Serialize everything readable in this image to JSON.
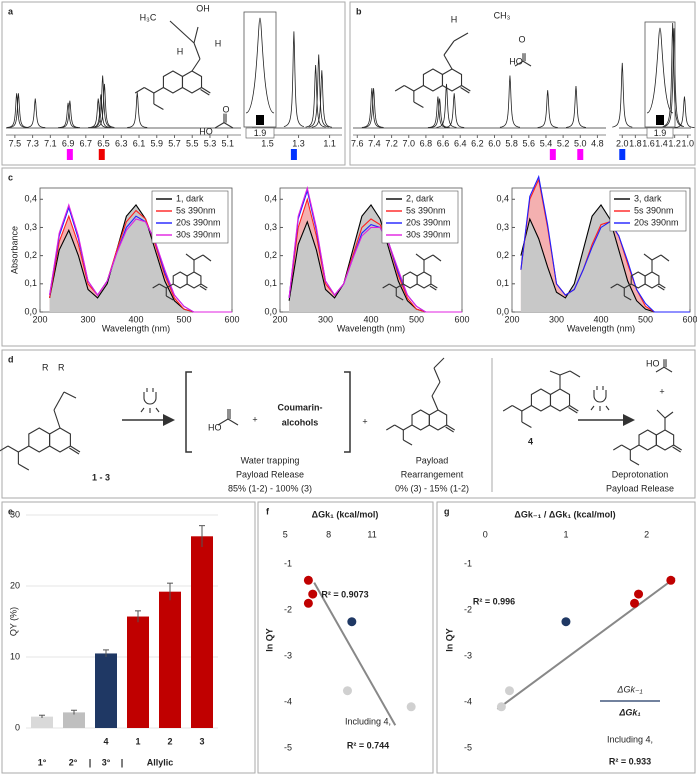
{
  "panel_labels": [
    "a",
    "b",
    "c",
    "d",
    "e",
    "f",
    "g"
  ],
  "chart_data": [
    {
      "type": "nmr",
      "segments": [
        {
          "xlim": [
            7.6,
            4.95
          ],
          "xticks": [
            7.5,
            7.3,
            7.1,
            6.9,
            6.7,
            6.5,
            6.3,
            6.1,
            5.9,
            5.7,
            5.5,
            5.3,
            5.1
          ]
        },
        {
          "xlim": [
            1.6,
            1.02
          ],
          "xticks": [
            1.5,
            1.3,
            1.1
          ]
        }
      ],
      "peaks": {
        "x": [
          7.48,
          7.46,
          7.27,
          6.9,
          6.88,
          6.56,
          6.53,
          6.51,
          6.49,
          6.12,
          1.33,
          1.19,
          1.17,
          1.15
        ],
        "height": [
          0.33,
          0.33,
          0.28,
          0.24,
          0.26,
          0.28,
          0.32,
          0.5,
          0.42,
          0.34,
          0.92,
          0.6,
          0.7,
          0.55
        ]
      },
      "markers": {
        "x": [
          6.88,
          6.52,
          1.33
        ],
        "colors": [
          "#ff00ff",
          "#ee0000",
          "#0033ff"
        ]
      },
      "integral_label": "1.9",
      "structure_labels": [
        "H₃C",
        "OH",
        "H",
        "H",
        "HO",
        "O"
      ],
      "structure_label_colors": [
        "#000000",
        "#000000",
        "#e000e0",
        "#e00000",
        "#000000",
        "#000000"
      ]
    },
    {
      "type": "nmr",
      "segments": [
        {
          "xlim": [
            7.65,
            4.7
          ],
          "xticks": [
            7.6,
            7.4,
            7.2,
            {
              "value": 7,
              "label": "7.0"
            },
            6.8,
            6.6,
            6.4,
            6.2,
            {
              "value": 6,
              "label": "6.0"
            },
            5.8,
            5.6,
            5.4,
            5.2,
            {
              "value": 5,
              "label": "5.0"
            },
            4.8
          ]
        },
        {
          "xlim": [
            2.05,
            0.95
          ],
          "xticks": [
            {
              "value": 2,
              "label": "2.0"
            },
            1.8,
            1.6,
            1.4,
            1.2,
            {
              "value": 1,
              "label": "1.0"
            }
          ]
        }
      ],
      "peaks": {
        "x": [
          7.43,
          7.41,
          6.66,
          6.64,
          6.56,
          6.47,
          5.82,
          5.38,
          5.05,
          2.0,
          1.23,
          1.21,
          1.05
        ],
        "height": [
          0.38,
          0.38,
          0.3,
          0.28,
          0.42,
          0.33,
          0.5,
          0.36,
          0.4,
          0.62,
          1.0,
          0.95,
          0.3
        ]
      },
      "markers": {
        "x": [
          5.32,
          5.0,
          2.0
        ],
        "colors": [
          "#ff00ff",
          "#ff00ff",
          "#0033ff"
        ]
      },
      "integral_label": "1.9",
      "structure_labels": [
        "H",
        "CH₃",
        "O",
        "HO"
      ],
      "structure_label_colors": [
        "#e000e0",
        "#000000",
        "#000000",
        "#000000"
      ]
    },
    {
      "type": "absorbance",
      "ylabel": "Absorbance",
      "xlabel": "Wavelength (nm)",
      "xlim": [
        200,
        600
      ],
      "xticks": [
        200,
        300,
        400,
        500,
        600
      ],
      "ylim": [
        0,
        0.44
      ],
      "yticks": [
        {
          "value": 0,
          "label": "0,0"
        },
        {
          "value": 0.1,
          "label": "0,1"
        },
        {
          "value": 0.2,
          "label": "0,2"
        },
        {
          "value": 0.3,
          "label": "0,3"
        },
        {
          "value": 0.4,
          "label": "0,4"
        }
      ],
      "x": [
        220,
        240,
        260,
        280,
        300,
        320,
        340,
        360,
        380,
        400,
        420,
        440,
        460,
        480,
        500,
        520,
        540,
        560,
        580,
        600
      ],
      "series": [
        {
          "name": "1, dark",
          "color": "#000000",
          "values": [
            0.05,
            0.22,
            0.29,
            0.2,
            0.08,
            0.05,
            0.1,
            0.22,
            0.34,
            0.38,
            0.33,
            0.22,
            0.11,
            0.04,
            0.01,
            0,
            0,
            0,
            0,
            0
          ]
        },
        {
          "name": "5s 390nm",
          "color": "#ff2020",
          "values": [
            0.05,
            0.25,
            0.34,
            0.24,
            0.1,
            0.06,
            0.11,
            0.22,
            0.32,
            0.36,
            0.33,
            0.24,
            0.13,
            0.05,
            0.01,
            0,
            0,
            0,
            0,
            0
          ]
        },
        {
          "name": "20s 390nm",
          "color": "#2020ff",
          "values": [
            0.06,
            0.27,
            0.37,
            0.26,
            0.11,
            0.06,
            0.11,
            0.21,
            0.3,
            0.34,
            0.32,
            0.25,
            0.14,
            0.06,
            0.02,
            0,
            0,
            0,
            0,
            0
          ]
        },
        {
          "name": "30s 390nm",
          "color": "#e020e0",
          "values": [
            0.06,
            0.28,
            0.38,
            0.27,
            0.11,
            0.06,
            0.11,
            0.21,
            0.29,
            0.33,
            0.32,
            0.25,
            0.15,
            0.06,
            0.02,
            0,
            0,
            0,
            0,
            0
          ]
        }
      ]
    },
    {
      "type": "absorbance",
      "xlabel": "Wavelength (nm)",
      "xlim": [
        200,
        600
      ],
      "xticks": [
        200,
        300,
        400,
        500,
        600
      ],
      "ylim": [
        0,
        0.44
      ],
      "yticks": [
        {
          "value": 0,
          "label": "0,0"
        },
        {
          "value": 0.1,
          "label": "0,1"
        },
        {
          "value": 0.2,
          "label": "0,2"
        },
        {
          "value": 0.3,
          "label": "0,3"
        },
        {
          "value": 0.4,
          "label": "0,4"
        }
      ],
      "x": [
        220,
        240,
        260,
        280,
        300,
        320,
        340,
        360,
        380,
        400,
        420,
        440,
        460,
        480,
        500,
        520,
        540,
        560,
        580,
        600
      ],
      "series": [
        {
          "name": "2, dark",
          "color": "#000000",
          "values": [
            0.04,
            0.24,
            0.32,
            0.22,
            0.08,
            0.05,
            0.1,
            0.22,
            0.34,
            0.38,
            0.33,
            0.22,
            0.11,
            0.04,
            0.01,
            0,
            0,
            0,
            0,
            0
          ]
        },
        {
          "name": "5s 390nm",
          "color": "#ff2020",
          "values": [
            0.05,
            0.3,
            0.4,
            0.27,
            0.1,
            0.06,
            0.1,
            0.2,
            0.3,
            0.33,
            0.31,
            0.24,
            0.13,
            0.05,
            0.01,
            0,
            0,
            0,
            0,
            0
          ]
        },
        {
          "name": "20s 390nm",
          "color": "#2020ff",
          "values": [
            0.05,
            0.33,
            0.43,
            0.29,
            0.11,
            0.06,
            0.1,
            0.19,
            0.28,
            0.31,
            0.3,
            0.24,
            0.14,
            0.06,
            0.02,
            0,
            0,
            0,
            0,
            0
          ]
        },
        {
          "name": "30s 390nm",
          "color": "#e020e0",
          "values": [
            0.05,
            0.34,
            0.44,
            0.3,
            0.11,
            0.06,
            0.1,
            0.19,
            0.27,
            0.3,
            0.3,
            0.24,
            0.15,
            0.06,
            0.02,
            0,
            0,
            0,
            0,
            0
          ]
        }
      ]
    },
    {
      "type": "absorbance",
      "xlabel": "Wavelength (nm)",
      "xlim": [
        200,
        600
      ],
      "xticks": [
        200,
        300,
        400,
        500,
        600
      ],
      "ylim": [
        0,
        0.44
      ],
      "yticks": [
        {
          "value": 0,
          "label": "0,0"
        },
        {
          "value": 0.1,
          "label": "0,1"
        },
        {
          "value": 0.2,
          "label": "0,2"
        },
        {
          "value": 0.3,
          "label": "0,3"
        },
        {
          "value": 0.4,
          "label": "0,4"
        }
      ],
      "x": [
        220,
        240,
        260,
        280,
        300,
        320,
        340,
        360,
        380,
        400,
        420,
        440,
        460,
        480,
        500,
        520,
        540,
        560,
        580,
        600
      ],
      "series": [
        {
          "name": "3, dark",
          "color": "#000000",
          "values": [
            0.2,
            0.33,
            0.26,
            0.16,
            0.07,
            0.05,
            0.1,
            0.22,
            0.34,
            0.38,
            0.33,
            0.22,
            0.11,
            0.04,
            0.01,
            0,
            0,
            0,
            0,
            0
          ]
        },
        {
          "name": "5s 390nm",
          "color": "#ff2020",
          "values": [
            0.15,
            0.4,
            0.47,
            0.3,
            0.1,
            0.06,
            0.08,
            0.15,
            0.24,
            0.31,
            0.32,
            0.27,
            0.17,
            0.08,
            0.02,
            0,
            0,
            0,
            0,
            0
          ]
        },
        {
          "name": "20s 390nm",
          "color": "#2020ff",
          "values": [
            0.15,
            0.41,
            0.48,
            0.31,
            0.1,
            0.06,
            0.08,
            0.15,
            0.23,
            0.3,
            0.32,
            0.27,
            0.18,
            0.08,
            0.03,
            0,
            0,
            0,
            0,
            0
          ]
        }
      ]
    },
    {
      "type": "bar",
      "ylabel": "QY (%)",
      "categories": [
        null,
        null,
        "4",
        "1",
        "2",
        "3"
      ],
      "values": [
        1.6,
        2.2,
        10.5,
        15.7,
        19.2,
        27.0
      ],
      "errors": [
        0.2,
        0.3,
        0.5,
        0.8,
        1.2,
        1.5
      ],
      "colors": [
        "#d9d9d9",
        "#bfbfbf",
        "#1f3864",
        "#c00000",
        "#c00000",
        "#c00000"
      ],
      "ylim": [
        0,
        30
      ],
      "yticks": [
        0,
        10,
        20,
        30
      ],
      "grid": true,
      "group_labels": [
        "1°",
        "2°",
        "|",
        "3°",
        "|",
        "Allylic"
      ],
      "group_label_colors": [
        "#808080",
        "#808080",
        "#1f3864",
        "#1f3864",
        "#1f3864",
        "#c00000"
      ]
    },
    {
      "type": "scatter",
      "title": "ΔGk₁ (kcal/mol)",
      "ylabel": "ln QY",
      "xlim": [
        4.5,
        15
      ],
      "xticks": [
        5,
        8,
        11
      ],
      "ylim": [
        -5.3,
        -0.3
      ],
      "yticks": [
        -1,
        -2,
        -3,
        -4,
        -5
      ],
      "points": {
        "x": [
          6.6,
          6.9,
          6.6,
          9.6,
          9.3,
          13.7
        ],
        "y": [
          -1.35,
          -1.65,
          -1.85,
          -2.25,
          -3.75,
          -4.1
        ],
        "colors": [
          "#c00000",
          "#c00000",
          "#c00000",
          "#1f3864",
          "#d0d0d0",
          "#d0d0d0"
        ]
      },
      "fit": {
        "x": [
          7.0,
          12.6
        ],
        "y": [
          -1.4,
          -4.5
        ]
      },
      "annotations": [
        "R² = 0.9073",
        "Including 4,",
        "R² = 0.744"
      ]
    },
    {
      "type": "scatter",
      "title": "ΔGk₋₁ / ΔGk₁ (kcal/mol)",
      "ylabel": "ln QY",
      "xlim": [
        -0.4,
        2.55
      ],
      "xticks": [
        0,
        1,
        2
      ],
      "ylim": [
        -5.3,
        -0.3
      ],
      "yticks": [
        -1,
        -2,
        -3,
        -4,
        -5
      ],
      "points": {
        "x": [
          2.3,
          1.9,
          1.85,
          1.0,
          0.3,
          0.2
        ],
        "y": [
          -1.35,
          -1.65,
          -1.85,
          -2.25,
          -3.75,
          -4.1
        ],
        "colors": [
          "#c00000",
          "#c00000",
          "#c00000",
          "#1f3864",
          "#d0d0d0",
          "#d0d0d0"
        ]
      },
      "fit": {
        "x": [
          0.15,
          2.35
        ],
        "y": [
          -4.15,
          -1.3
        ]
      },
      "annotations": [
        "R² = 0.996",
        "Including 4,",
        "R² = 0.933"
      ],
      "fraction": [
        "ΔGk₋₁",
        "ΔGk₁"
      ]
    }
  ],
  "scheme": {
    "compound_range": "1 - 3",
    "atoms": [
      "R",
      "R",
      "HO",
      "HO"
    ],
    "plus": [
      "+",
      "+",
      "+"
    ],
    "coumarin_alcohols": [
      "Coumarin-",
      "alcohols"
    ],
    "water_trapping": [
      "Water trapping",
      "Payload Release",
      "85% (1-2) - 100% (3)"
    ],
    "rearrangement": [
      "Payload",
      "Rearrangement",
      "0% (3) - 15% (1-2)"
    ],
    "compound_4": "4",
    "deprotonation": [
      "Deprotonation",
      "Payload Release"
    ]
  }
}
